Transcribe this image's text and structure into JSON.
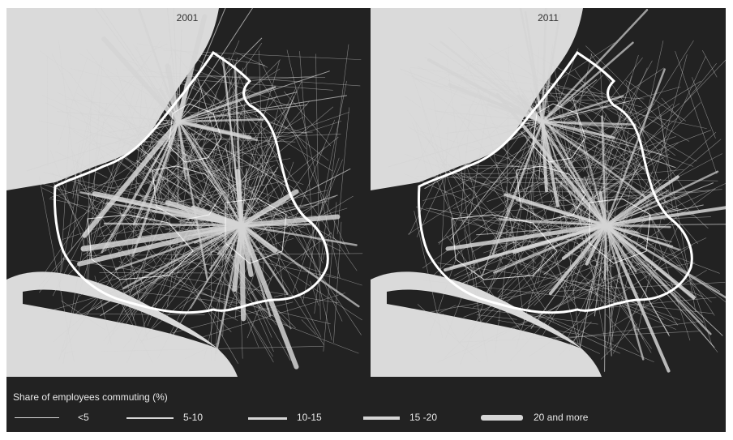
{
  "panels": [
    {
      "year": "2001"
    },
    {
      "year": "2011"
    }
  ],
  "legend": {
    "title": "Share of employees commuting (%)",
    "classes": [
      {
        "label": "<5"
      },
      {
        "label": "5-10"
      },
      {
        "label": "10-15"
      },
      {
        "label": "15 -20"
      },
      {
        "label": "20 and more"
      }
    ]
  },
  "colors": {
    "land": "#222222",
    "sea": "#dadada",
    "boundary": "#ffffff",
    "flow": "#d4d4d4"
  }
}
